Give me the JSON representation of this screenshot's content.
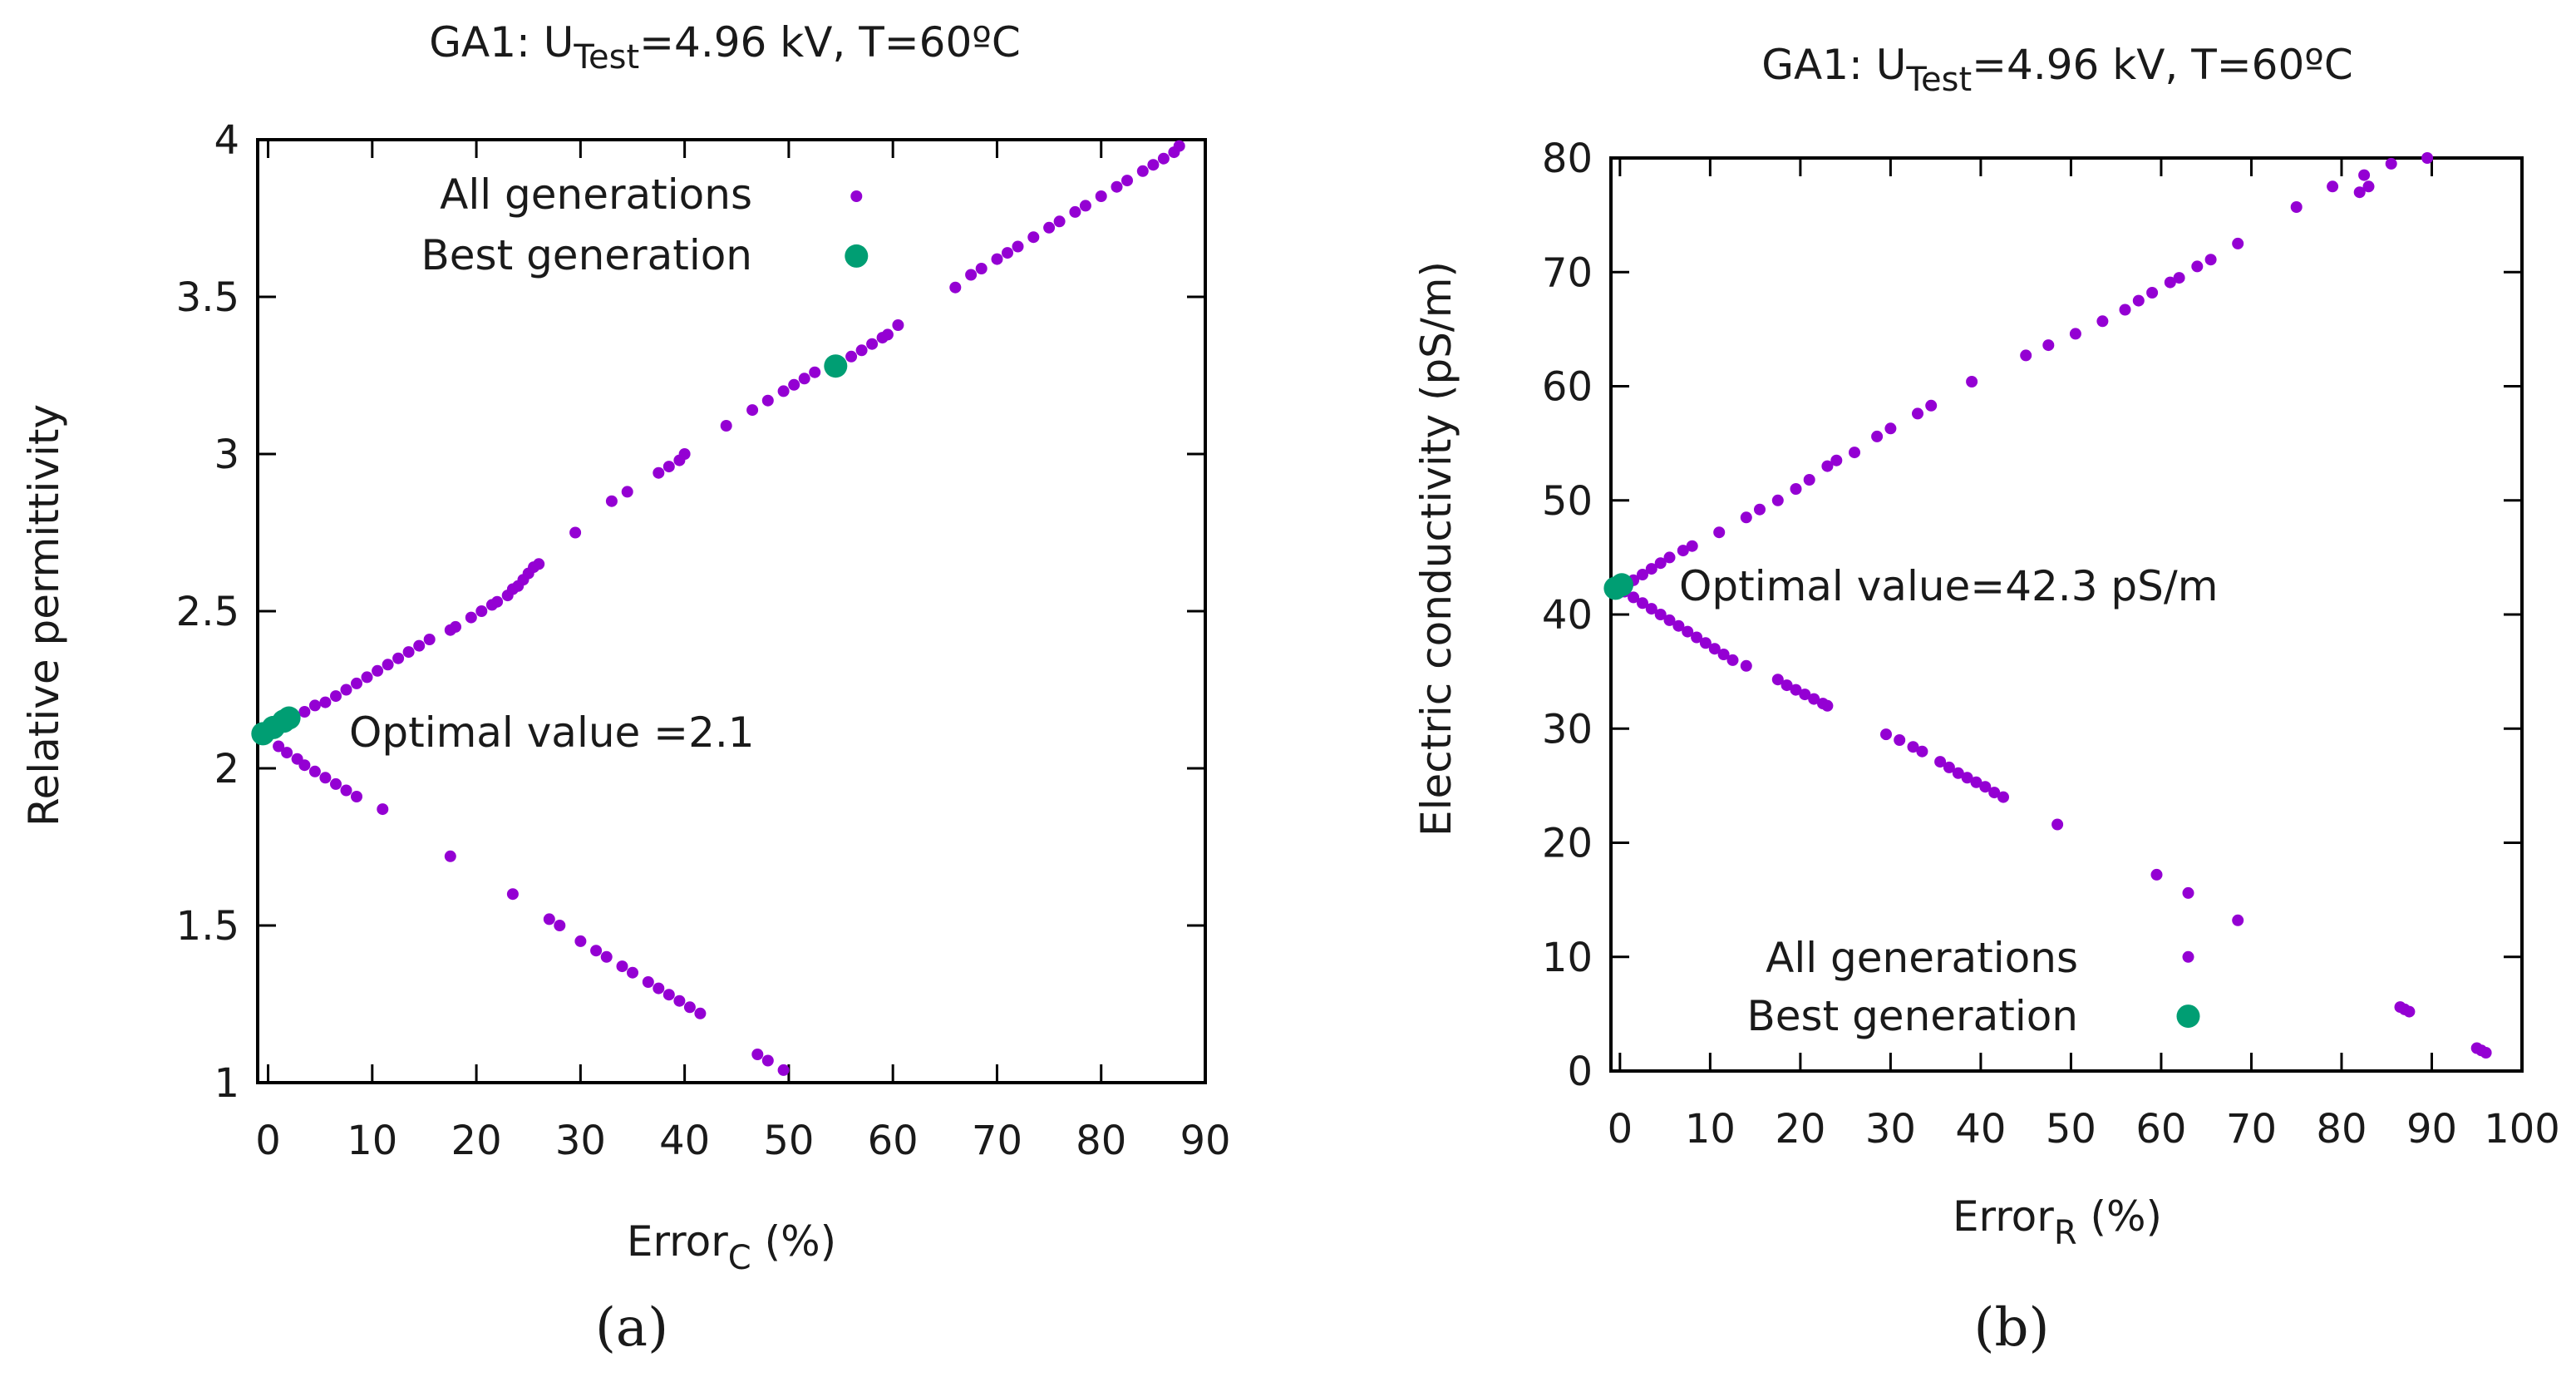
{
  "colors": {
    "all": "#9400d3",
    "best": "#009e73",
    "axis": "#000000"
  },
  "chart_data": [
    {
      "type": "scatter",
      "panel_label": "(a)",
      "title": "GA1: U{Test}=4.96 kV, T=60ºC",
      "title_parts": {
        "prefix": "GA1: U",
        "sub": "Test",
        "suffix": "=4.96 kV, T=60ºC"
      },
      "xlabel": {
        "main": "Error",
        "sub": "C",
        "suffix": " (%)"
      },
      "ylabel": "Relative permittivity",
      "xlim": [
        -1,
        90
      ],
      "ylim": [
        1,
        4
      ],
      "xticks": [
        0,
        10,
        20,
        30,
        40,
        50,
        60,
        70,
        80,
        90
      ],
      "yticks": [
        1,
        1.5,
        2,
        2.5,
        3,
        3.5,
        4
      ],
      "ytick_labels": [
        "1",
        "1.5",
        "2",
        "2.5",
        "3",
        "3.5",
        "4"
      ],
      "grid": false,
      "legend_position": "top-center",
      "annotation": "Optimal value =2.1",
      "series": [
        {
          "name": "All generations",
          "color": "#9400d3",
          "points": [
            [
              0.5,
              2.12
            ],
            [
              1.0,
              2.14
            ],
            [
              1.5,
              2.15
            ],
            [
              2.5,
              2.16
            ],
            [
              3.5,
              2.18
            ],
            [
              4.5,
              2.2
            ],
            [
              5.5,
              2.21
            ],
            [
              6.5,
              2.23
            ],
            [
              7.5,
              2.25
            ],
            [
              8.5,
              2.27
            ],
            [
              9.5,
              2.29
            ],
            [
              10.5,
              2.31
            ],
            [
              11.5,
              2.33
            ],
            [
              12.5,
              2.35
            ],
            [
              13.5,
              2.37
            ],
            [
              14.5,
              2.39
            ],
            [
              15.5,
              2.41
            ],
            [
              17.5,
              2.44
            ],
            [
              18.0,
              2.45
            ],
            [
              19.5,
              2.48
            ],
            [
              20.5,
              2.5
            ],
            [
              21.5,
              2.52
            ],
            [
              22.0,
              2.53
            ],
            [
              23.0,
              2.55
            ],
            [
              23.5,
              2.57
            ],
            [
              24.0,
              2.58
            ],
            [
              24.5,
              2.6
            ],
            [
              25.0,
              2.62
            ],
            [
              25.5,
              2.64
            ],
            [
              26.0,
              2.65
            ],
            [
              29.5,
              2.75
            ],
            [
              33.0,
              2.85
            ],
            [
              34.5,
              2.88
            ],
            [
              37.5,
              2.94
            ],
            [
              38.5,
              2.96
            ],
            [
              39.5,
              2.98
            ],
            [
              40.0,
              3.0
            ],
            [
              44.0,
              3.09
            ],
            [
              46.5,
              3.14
            ],
            [
              48.0,
              3.17
            ],
            [
              49.5,
              3.2
            ],
            [
              50.5,
              3.22
            ],
            [
              51.5,
              3.24
            ],
            [
              52.5,
              3.26
            ],
            [
              56.0,
              3.31
            ],
            [
              57.0,
              3.33
            ],
            [
              58.0,
              3.35
            ],
            [
              59.0,
              3.37
            ],
            [
              59.5,
              3.38
            ],
            [
              60.5,
              3.41
            ],
            [
              66.0,
              3.53
            ],
            [
              67.5,
              3.57
            ],
            [
              68.5,
              3.59
            ],
            [
              70.0,
              3.62
            ],
            [
              71.0,
              3.64
            ],
            [
              72.0,
              3.66
            ],
            [
              73.5,
              3.69
            ],
            [
              75.0,
              3.72
            ],
            [
              76.0,
              3.74
            ],
            [
              77.5,
              3.77
            ],
            [
              78.5,
              3.79
            ],
            [
              80.0,
              3.82
            ],
            [
              81.5,
              3.85
            ],
            [
              82.5,
              3.87
            ],
            [
              84.0,
              3.9
            ],
            [
              85.0,
              3.92
            ],
            [
              86.0,
              3.94
            ],
            [
              87.0,
              3.96
            ],
            [
              87.5,
              3.98
            ],
            [
              1.0,
              2.07
            ],
            [
              1.8,
              2.05
            ],
            [
              2.8,
              2.03
            ],
            [
              3.5,
              2.01
            ],
            [
              4.5,
              1.99
            ],
            [
              5.5,
              1.97
            ],
            [
              6.5,
              1.95
            ],
            [
              7.5,
              1.93
            ],
            [
              8.5,
              1.91
            ],
            [
              11.0,
              1.87
            ],
            [
              17.5,
              1.72
            ],
            [
              23.5,
              1.6
            ],
            [
              27.0,
              1.52
            ],
            [
              28.0,
              1.5
            ],
            [
              30.0,
              1.45
            ],
            [
              31.5,
              1.42
            ],
            [
              32.5,
              1.4
            ],
            [
              34.0,
              1.37
            ],
            [
              35.0,
              1.35
            ],
            [
              36.5,
              1.32
            ],
            [
              37.5,
              1.3
            ],
            [
              38.5,
              1.28
            ],
            [
              39.5,
              1.26
            ],
            [
              40.5,
              1.24
            ],
            [
              41.5,
              1.22
            ],
            [
              47.0,
              1.09
            ],
            [
              48.0,
              1.07
            ],
            [
              49.5,
              1.04
            ],
            [
              56.5,
              3.82
            ]
          ]
        },
        {
          "name": "Best generation",
          "color": "#009e73",
          "points": [
            [
              -0.5,
              2.11
            ],
            [
              0.5,
              2.13
            ],
            [
              1.5,
              2.15
            ],
            [
              2.0,
              2.16
            ],
            [
              54.5,
              3.28
            ],
            [
              56.5,
              3.63
            ]
          ]
        }
      ]
    },
    {
      "type": "scatter",
      "panel_label": "(b)",
      "title": "GA1: U{Test}=4.96 kV, T=60ºC",
      "title_parts": {
        "prefix": "GA1: U",
        "sub": "Test",
        "suffix": "=4.96 kV, T=60ºC"
      },
      "xlabel": {
        "main": "Error",
        "sub": "R",
        "suffix": " (%)"
      },
      "ylabel": "Electric conductivity (pS/m)",
      "xlim": [
        -1,
        100
      ],
      "ylim": [
        0,
        80
      ],
      "xticks": [
        0,
        10,
        20,
        30,
        40,
        50,
        60,
        70,
        80,
        90,
        100
      ],
      "yticks": [
        0,
        10,
        20,
        30,
        40,
        50,
        60,
        70,
        80
      ],
      "ytick_labels": [
        "0",
        "10",
        "20",
        "30",
        "40",
        "50",
        "60",
        "70",
        "80"
      ],
      "grid": false,
      "legend_position": "bottom-right",
      "annotation": "Optimal value=42.3 pS/m",
      "series": [
        {
          "name": "All generations",
          "color": "#9400d3",
          "points": [
            [
              1.0,
              42.8
            ],
            [
              1.5,
              43.0
            ],
            [
              2.5,
              43.5
            ],
            [
              3.5,
              44.0
            ],
            [
              4.5,
              44.5
            ],
            [
              5.5,
              45.0
            ],
            [
              7.0,
              45.6
            ],
            [
              8.0,
              46.0
            ],
            [
              11.0,
              47.2
            ],
            [
              14.0,
              48.5
            ],
            [
              15.5,
              49.2
            ],
            [
              17.5,
              50.0
            ],
            [
              19.5,
              51.0
            ],
            [
              21.0,
              51.8
            ],
            [
              23.0,
              53.0
            ],
            [
              24.0,
              53.5
            ],
            [
              26.0,
              54.2
            ],
            [
              28.5,
              55.6
            ],
            [
              30.0,
              56.3
            ],
            [
              33.0,
              57.6
            ],
            [
              34.5,
              58.3
            ],
            [
              39.0,
              60.4
            ],
            [
              45.0,
              62.7
            ],
            [
              47.5,
              63.6
            ],
            [
              50.5,
              64.6
            ],
            [
              53.5,
              65.7
            ],
            [
              56.0,
              66.7
            ],
            [
              57.5,
              67.5
            ],
            [
              59.0,
              68.2
            ],
            [
              61.0,
              69.1
            ],
            [
              62.0,
              69.5
            ],
            [
              64.0,
              70.5
            ],
            [
              65.5,
              71.1
            ],
            [
              68.5,
              72.5
            ],
            [
              75.0,
              75.7
            ],
            [
              79.0,
              77.5
            ],
            [
              82.5,
              78.5
            ],
            [
              85.5,
              79.5
            ],
            [
              89.5,
              80.0
            ],
            [
              0.5,
              42.0
            ],
            [
              1.5,
              41.5
            ],
            [
              2.5,
              41.0
            ],
            [
              3.5,
              40.5
            ],
            [
              4.5,
              40.0
            ],
            [
              5.5,
              39.5
            ],
            [
              6.5,
              39.0
            ],
            [
              7.5,
              38.5
            ],
            [
              8.5,
              38.0
            ],
            [
              9.5,
              37.5
            ],
            [
              10.5,
              37.0
            ],
            [
              11.5,
              36.5
            ],
            [
              12.5,
              36.0
            ],
            [
              14.0,
              35.5
            ],
            [
              17.5,
              34.3
            ],
            [
              18.5,
              33.8
            ],
            [
              19.5,
              33.4
            ],
            [
              20.5,
              33.0
            ],
            [
              21.5,
              32.6
            ],
            [
              22.5,
              32.2
            ],
            [
              23.0,
              32.0
            ],
            [
              29.5,
              29.5
            ],
            [
              31.0,
              29.0
            ],
            [
              32.5,
              28.4
            ],
            [
              33.5,
              28.0
            ],
            [
              35.5,
              27.1
            ],
            [
              36.5,
              26.6
            ],
            [
              37.5,
              26.1
            ],
            [
              38.5,
              25.7
            ],
            [
              39.5,
              25.3
            ],
            [
              40.5,
              24.9
            ],
            [
              41.5,
              24.4
            ],
            [
              42.5,
              24.0
            ],
            [
              48.5,
              21.6
            ],
            [
              59.5,
              17.2
            ],
            [
              63.0,
              15.6
            ],
            [
              68.5,
              13.2
            ],
            [
              82.0,
              77.0
            ],
            [
              83.0,
              77.5
            ],
            [
              86.5,
              5.6
            ],
            [
              87.0,
              5.4
            ],
            [
              87.5,
              5.2
            ],
            [
              95.0,
              2.0
            ],
            [
              95.5,
              1.8
            ],
            [
              96.0,
              1.6
            ],
            [
              63.0,
              10.0
            ]
          ]
        },
        {
          "name": "Best generation",
          "color": "#009e73",
          "points": [
            [
              -0.5,
              42.3
            ],
            [
              0.2,
              42.6
            ],
            [
              63.0,
              4.8
            ]
          ]
        }
      ]
    }
  ]
}
